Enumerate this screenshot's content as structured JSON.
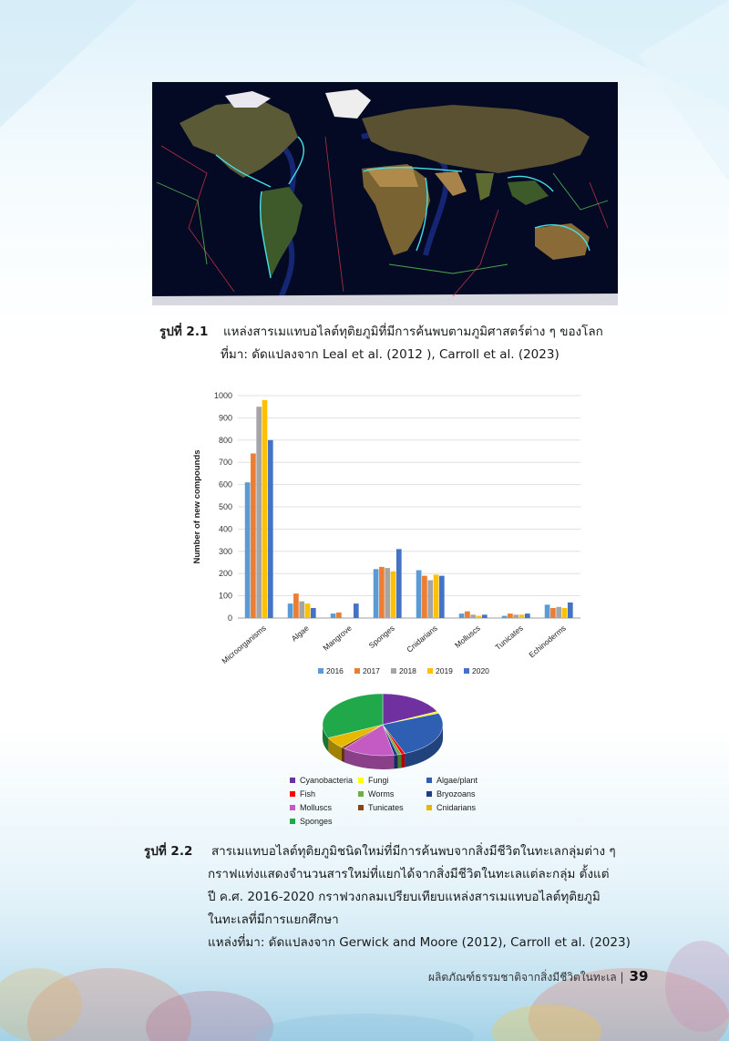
{
  "page": {
    "figure_2_1": {
      "label": "รูปที่ 2.1",
      "title": "แหล่งสารเมแทบอไลต์ทุติยภูมิที่มีการค้นพบตามภูมิศาสตร์ต่าง ๆ ของโลก",
      "source": "ที่มา: ดัดแปลงจาก Leal et al. (2012 ), Carroll et al. (2023)"
    },
    "figure_2_2": {
      "label": "รูปที่ 2.2",
      "line1": "สารเมแทบอไลต์ทุติยภูมิชนิดใหม่ที่มีการค้นพบจากสิ่งมีชีวิตในทะเลกลุ่มต่าง ๆ",
      "line2": "กราฟแท่งแสดงจำนวนสารใหม่ที่แยกได้จากสิ่งมีชีวิตในทะเลแต่ละกลุ่ม  ตั้งแต่",
      "line3": "ปี ค.ศ. 2016-2020 กราฟวงกลมเปรียบเทียบแหล่งสารเมแทบอไลต์ทุติยภูมิ",
      "line4": "ในทะเลที่มีการแยกศึกษา",
      "source": "แหล่งที่มา: ดัดแปลงจาก Gerwick and Moore (2012), Carroll et al. (2023)"
    },
    "footer": {
      "text": "ผลิตภัณฑ์ธรรมชาติจากสิ่งมีชีวิตในทะเล |",
      "page_number": "39"
    }
  },
  "chart_data": [
    {
      "type": "bar",
      "ylabel": "Number of new compounds",
      "xlabel": "",
      "ylim": [
        0,
        1000
      ],
      "yticks": [
        "0",
        "100",
        "200",
        "300",
        "400",
        "500",
        "600",
        "700",
        "800",
        "900",
        "1000"
      ],
      "grid": true,
      "legend_position": "bottom",
      "categories": [
        "Microorganisms",
        "Algae",
        "Mangrove",
        "Sponges",
        "Cnidarians",
        "Molluscs",
        "Tunicates",
        "Echinoderms"
      ],
      "series": [
        {
          "name": "2016",
          "color": "#5b9bd5",
          "values": [
            610,
            65,
            20,
            220,
            215,
            20,
            10,
            60
          ]
        },
        {
          "name": "2017",
          "color": "#ed7d31",
          "values": [
            740,
            110,
            25,
            230,
            190,
            30,
            20,
            45
          ]
        },
        {
          "name": "2018",
          "color": "#a5a5a5",
          "values": [
            950,
            75,
            0,
            225,
            170,
            15,
            15,
            50
          ]
        },
        {
          "name": "2019",
          "color": "#ffc000",
          "values": [
            980,
            65,
            0,
            210,
            195,
            10,
            15,
            45
          ]
        },
        {
          "name": "2020",
          "color": "#4472c4",
          "values": [
            800,
            45,
            65,
            310,
            190,
            15,
            20,
            70
          ]
        }
      ]
    },
    {
      "type": "pie",
      "labels": [
        "Cyanobacteria",
        "Fungi",
        "Algae/plant",
        "Fish",
        "Worms",
        "Bryozoans",
        "Molluscs",
        "Tunicates",
        "Cnidarians",
        "Sponges"
      ],
      "values": [
        18,
        1,
        25,
        1,
        1,
        1,
        14,
        1,
        6,
        32
      ],
      "colors": [
        "#7030a0",
        "#ffff00",
        "#2f5fb3",
        "#ff0000",
        "#70ad47",
        "#1f3c88",
        "#c35bc3",
        "#8b4513",
        "#e6b800",
        "#21a84a"
      ],
      "legend_position": "bottom"
    }
  ]
}
